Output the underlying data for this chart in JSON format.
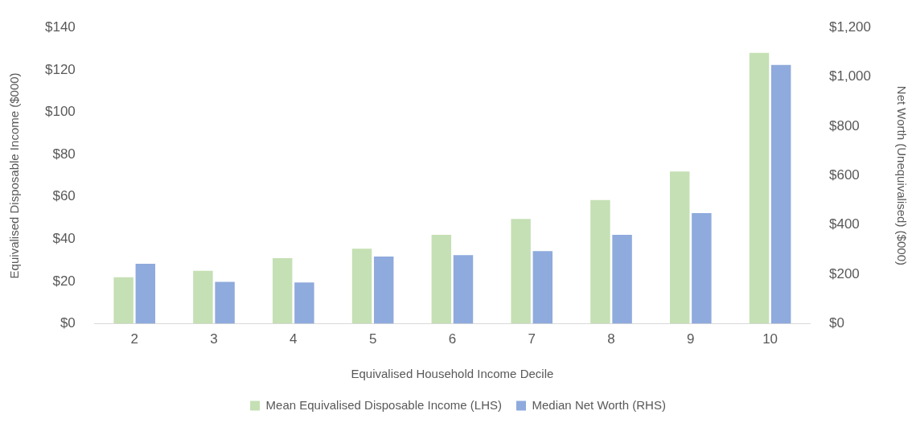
{
  "chart_data": {
    "type": "bar",
    "xlabel": "Equivalised Household Income Decile",
    "ylabel": "Equivalised Disposable Income ($000)",
    "y2label": "Net Worth (Unequivalised) ($000)",
    "categories": [
      "2",
      "3",
      "4",
      "5",
      "6",
      "7",
      "8",
      "9",
      "10"
    ],
    "series": [
      {
        "name": "Mean Equivalised Disposable Income (LHS)",
        "color": "#c5e0b4",
        "values": [
          22,
          25,
          31,
          35.5,
          42,
          49.5,
          58.5,
          72,
          128
        ]
      },
      {
        "name": "Median Net Worth (RHS)",
        "color": "#8faadc",
        "axis": "y2",
        "values": [
          243,
          170,
          167,
          272,
          278,
          294,
          360,
          448,
          1048
        ]
      }
    ],
    "ylim": [
      0,
      140
    ],
    "yticks": [
      {
        "value": 0,
        "label": "$0"
      },
      {
        "value": 20,
        "label": "$20"
      },
      {
        "value": 40,
        "label": "$40"
      },
      {
        "value": 60,
        "label": "$60"
      },
      {
        "value": 80,
        "label": "$80"
      },
      {
        "value": 100,
        "label": "$100"
      },
      {
        "value": 120,
        "label": "$120"
      },
      {
        "value": 140,
        "label": "$140"
      }
    ],
    "y2lim": [
      0,
      1200
    ],
    "y2ticks": [
      {
        "value": 0,
        "label": "$0"
      },
      {
        "value": 200,
        "label": "$200"
      },
      {
        "value": 400,
        "label": "$400"
      },
      {
        "value": 600,
        "label": "$600"
      },
      {
        "value": 800,
        "label": "$800"
      },
      {
        "value": 1000,
        "label": "$1,000"
      },
      {
        "value": 1200,
        "label": "$1,200"
      }
    ],
    "grid": false,
    "legend": "bottom"
  }
}
